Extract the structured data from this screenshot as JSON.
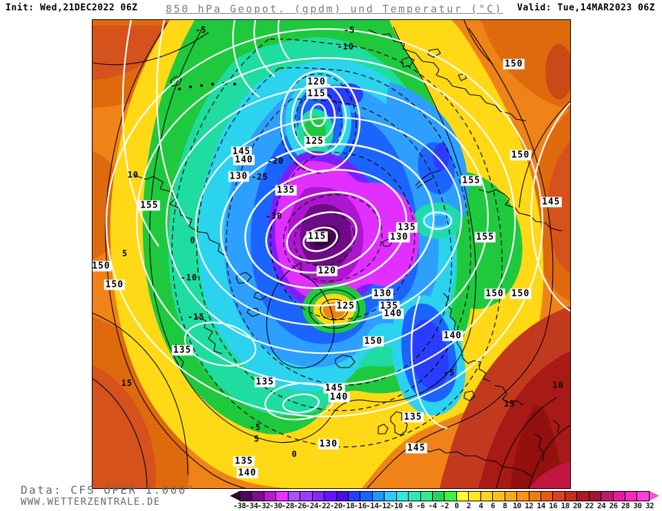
{
  "header": {
    "init": "Init: Wed,21DEC2022 06Z",
    "title": "850 hPa Geopot. (gpdm) und Temperatur (°C)",
    "valid": "Valid: Tue,14MAR2023 06Z"
  },
  "footer": {
    "data_source": "Data: CFS OPER 1.000°",
    "website": "WWW.WETTERZENTRALE.DE"
  },
  "chart_data": {
    "type": "heatmap",
    "title": "850 hPa Geopot. (gpdm) und Temperatur (°C)",
    "model": "CFS OPER 1.000°",
    "init_time": "Wed,21DEC2022 06Z",
    "valid_time": "Tue,14MAR2023 06Z",
    "projection": "northern-hemisphere polar stereographic",
    "colorbar": {
      "unit": "°C",
      "boundaries": [
        -38,
        -34,
        -32,
        -30,
        -28,
        -26,
        -24,
        -22,
        -20,
        -18,
        -16,
        -14,
        -12,
        -10,
        -8,
        -6,
        -4,
        -2,
        0,
        2,
        4,
        6,
        8,
        10,
        12,
        14,
        16,
        18,
        20,
        22,
        24,
        26,
        28,
        30,
        32
      ],
      "colors": [
        "#4C0A59",
        "#7D0D91",
        "#B01DC9",
        "#EE2FFF",
        "#A94FFF",
        "#9B3BFF",
        "#8227FF",
        "#6613FF",
        "#4A0DE0",
        "#2B3CFF",
        "#1565FF",
        "#2196FF",
        "#2EC8FF",
        "#2FE8E4",
        "#2EE9B5",
        "#2FED8B",
        "#23D55F",
        "#3CF53C",
        "#FFFF2E",
        "#FFE920",
        "#FFD41C",
        "#FFBE18",
        "#FFA815",
        "#FF9212",
        "#EE7C12",
        "#E55C10",
        "#D44420",
        "#C32F1D",
        "#AD1A22",
        "#A01539",
        "#BD1A6E",
        "#E01D9E",
        "#FA2AC0",
        "#FF3FD8"
      ],
      "arrow_left_color": "#2B0A30",
      "arrow_right_color": "#FF4AE4"
    },
    "geopotential_contour_unit": "gpdm",
    "geopotential_labels": [
      {
        "v": "120",
        "x": 46.9,
        "y": 13.3
      },
      {
        "v": "115",
        "x": 46.9,
        "y": 15.8
      },
      {
        "v": "125",
        "x": 46.5,
        "y": 25.9
      },
      {
        "v": "115",
        "x": 47.0,
        "y": 46.2
      },
      {
        "v": "120",
        "x": 49.1,
        "y": 53.6
      },
      {
        "v": "125",
        "x": 53.0,
        "y": 61.1
      },
      {
        "v": "130",
        "x": 60.7,
        "y": 58.5
      },
      {
        "v": "135",
        "x": 62.1,
        "y": 61.1
      },
      {
        "v": "140",
        "x": 62.9,
        "y": 62.8
      },
      {
        "v": "135",
        "x": 65.8,
        "y": 44.3
      },
      {
        "v": "130",
        "x": 64.2,
        "y": 46.4
      },
      {
        "v": "155",
        "x": 11.9,
        "y": 39.6
      },
      {
        "v": "150",
        "x": 1.8,
        "y": 52.6
      },
      {
        "v": "150",
        "x": 4.6,
        "y": 56.6
      },
      {
        "v": "145",
        "x": 31.2,
        "y": 28.1
      },
      {
        "v": "140",
        "x": 31.7,
        "y": 29.9
      },
      {
        "v": "130",
        "x": 30.6,
        "y": 33.4
      },
      {
        "v": "135",
        "x": 40.5,
        "y": 36.4
      },
      {
        "v": "150",
        "x": 89.6,
        "y": 28.9
      },
      {
        "v": "155",
        "x": 79.3,
        "y": 34.3
      },
      {
        "v": "145",
        "x": 96.0,
        "y": 38.9
      },
      {
        "v": "155",
        "x": 82.2,
        "y": 46.4
      },
      {
        "v": "150",
        "x": 58.8,
        "y": 68.6
      },
      {
        "v": "140",
        "x": 75.4,
        "y": 67.5
      },
      {
        "v": "135",
        "x": 36.1,
        "y": 77.3
      },
      {
        "v": "145",
        "x": 50.6,
        "y": 78.7
      },
      {
        "v": "140",
        "x": 51.6,
        "y": 80.6
      },
      {
        "v": "130",
        "x": 49.4,
        "y": 90.6
      },
      {
        "v": "135",
        "x": 31.7,
        "y": 94.3
      },
      {
        "v": "140",
        "x": 32.4,
        "y": 96.8
      },
      {
        "v": "135",
        "x": 18.8,
        "y": 70.5
      },
      {
        "v": "150",
        "x": 88.2,
        "y": 9.4
      },
      {
        "v": "150",
        "x": 84.2,
        "y": 58.5
      },
      {
        "v": "150",
        "x": 89.6,
        "y": 58.5
      },
      {
        "v": "135",
        "x": 67.1,
        "y": 84.8
      },
      {
        "v": "145",
        "x": 67.8,
        "y": 91.5
      }
    ],
    "temperature_labels": [
      {
        "v": "-5",
        "x": 22.7,
        "y": 2.2
      },
      {
        "v": "-5",
        "x": 53.8,
        "y": 2.2
      },
      {
        "v": "-10",
        "x": 53.0,
        "y": 5.7
      },
      {
        "v": "10",
        "x": 8.5,
        "y": 33.1
      },
      {
        "v": "5",
        "x": 6.8,
        "y": 49.9
      },
      {
        "v": "0",
        "x": 21.0,
        "y": 47.1
      },
      {
        "v": "-10",
        "x": 20.2,
        "y": 55.1
      },
      {
        "v": "-15",
        "x": 21.7,
        "y": 63.5
      },
      {
        "v": "-20",
        "x": 38.3,
        "y": 30.2
      },
      {
        "v": "-25",
        "x": 35.0,
        "y": 33.6
      },
      {
        "v": "-30",
        "x": 38.0,
        "y": 42.0
      },
      {
        "v": "-5",
        "x": 34.1,
        "y": 87.0
      },
      {
        "v": "5",
        "x": 34.4,
        "y": 89.5
      },
      {
        "v": "0",
        "x": 42.3,
        "y": 92.8
      },
      {
        "v": "-5",
        "x": 74.7,
        "y": 75.4
      },
      {
        "v": "10",
        "x": 97.5,
        "y": 78.1
      },
      {
        "v": "15",
        "x": 87.3,
        "y": 82.0
      },
      {
        "v": "15",
        "x": 7.2,
        "y": 77.6
      }
    ]
  }
}
